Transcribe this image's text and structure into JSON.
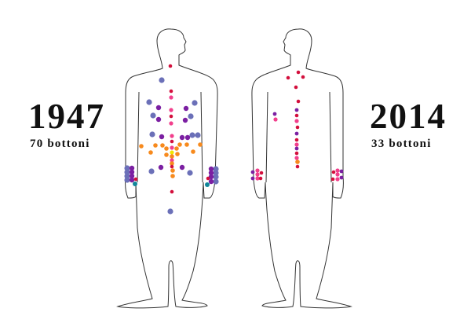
{
  "left": {
    "year": "1947",
    "count_label": "70 bottoni"
  },
  "right": {
    "year": "2014",
    "count_label": "33 bottoni"
  },
  "colors": {
    "blue": "#6b70b8",
    "purple": "#7b1fa2",
    "red": "#d30f3c",
    "pink": "#f23f8c",
    "orange": "#f78a1d",
    "yellow": "#f2e600",
    "teal": "#12879a",
    "outline": "#333333"
  }
}
